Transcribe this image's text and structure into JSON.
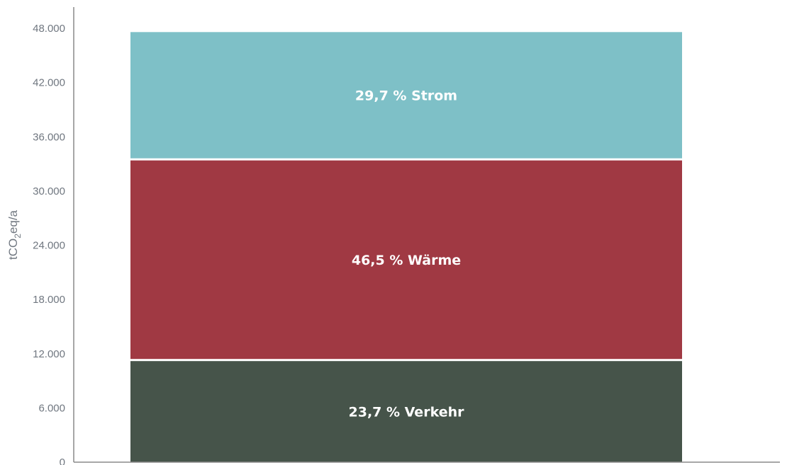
{
  "chart_data": {
    "type": "bar",
    "stacked": true,
    "ylabel_parts": {
      "base": "tCO",
      "sub": "2",
      "rest": "eq/a"
    },
    "ylim": [
      0,
      50000
    ],
    "yticks": [
      {
        "value": 0,
        "label": "0"
      },
      {
        "value": 6000,
        "label": "6.000"
      },
      {
        "value": 12000,
        "label": "12.000"
      },
      {
        "value": 18000,
        "label": "18.000"
      },
      {
        "value": 24000,
        "label": "24.000"
      },
      {
        "value": 30000,
        "label": "30.000"
      },
      {
        "value": 36000,
        "label": "36.000"
      },
      {
        "value": 42000,
        "label": "42.000"
      },
      {
        "value": 48000,
        "label": "48.000"
      }
    ],
    "grid": false,
    "series": [
      {
        "label": "23,7 % Verkehr",
        "value": 11300,
        "color": "#46544a"
      },
      {
        "label": "46,5 % Wärme",
        "value": 22200,
        "color": "#a03943"
      },
      {
        "label": "29,7 % Strom",
        "value": 14200,
        "color": "#7ec0c7"
      }
    ]
  }
}
